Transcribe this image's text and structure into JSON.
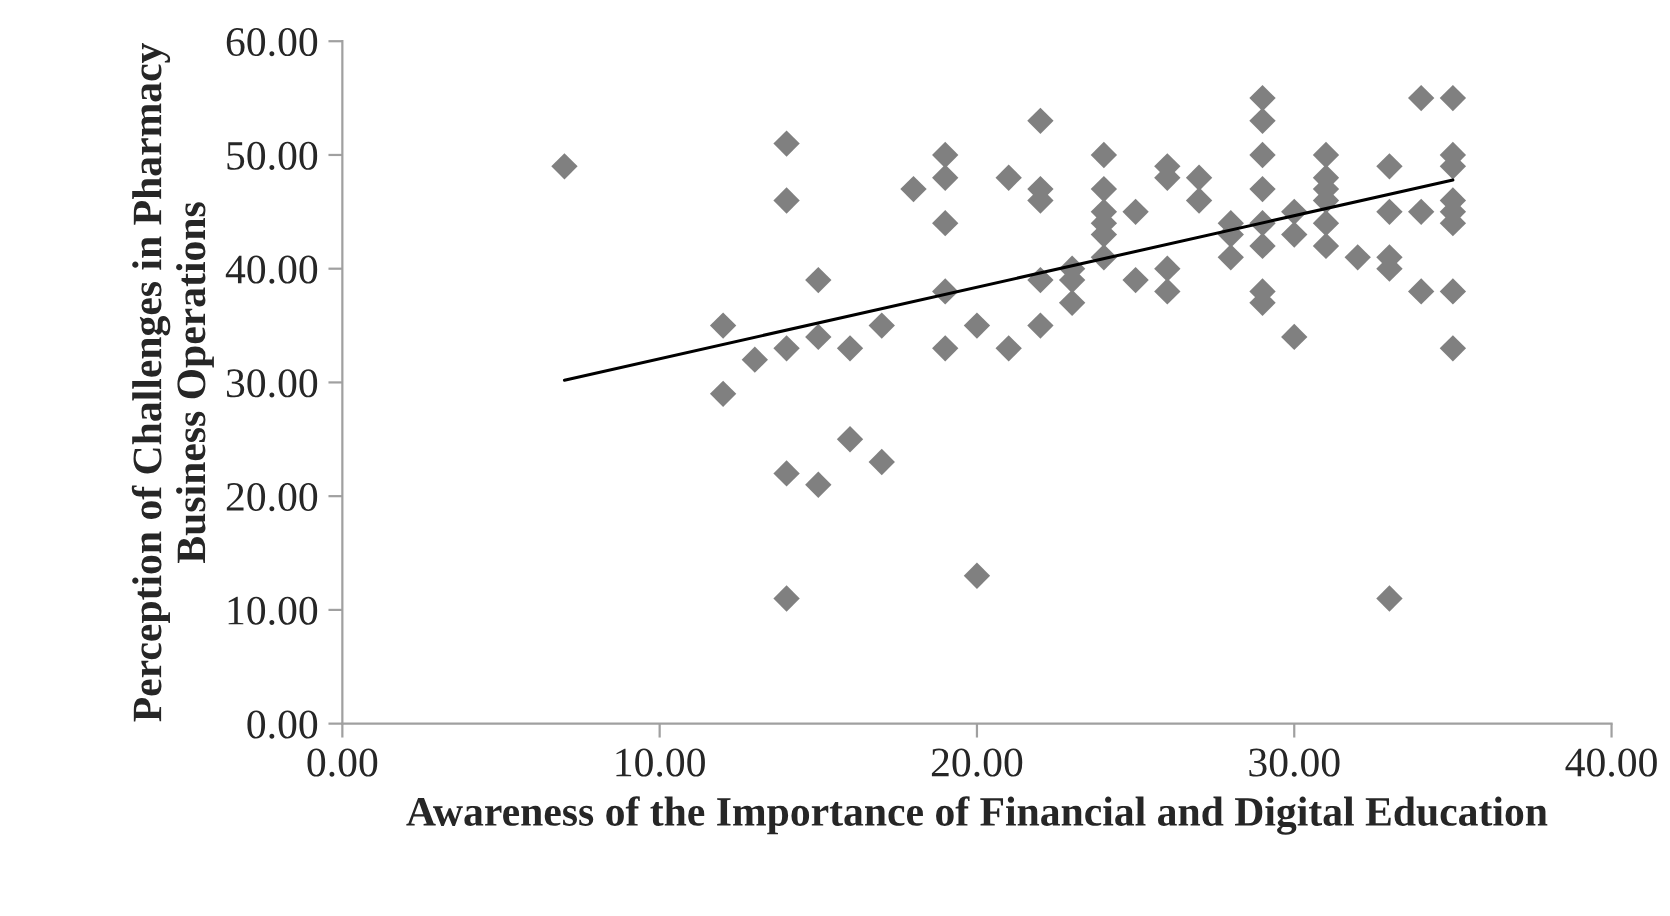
{
  "chart_data": {
    "type": "scatter",
    "xlabel": "Awareness of the Importance of Financial and Digital Education",
    "ylabel": "Perception of Challenges in Pharmacy Business Operations",
    "marker": "diamond",
    "grid": false,
    "legend": false,
    "xlim": [
      0,
      40
    ],
    "ylim": [
      0,
      60
    ],
    "xticks": [
      {
        "value": 0,
        "label": "0.00"
      },
      {
        "value": 10,
        "label": "10.00"
      },
      {
        "value": 20,
        "label": "20.00"
      },
      {
        "value": 30,
        "label": "30.00"
      },
      {
        "value": 40,
        "label": "40.00"
      }
    ],
    "yticks": [
      {
        "value": 0,
        "label": "0.00"
      },
      {
        "value": 10,
        "label": "10.00"
      },
      {
        "value": 20,
        "label": "20.00"
      },
      {
        "value": 30,
        "label": "30.00"
      },
      {
        "value": 40,
        "label": "40.00"
      },
      {
        "value": 50,
        "label": "50.00"
      },
      {
        "value": 60,
        "label": "60.00"
      }
    ],
    "series": [
      {
        "color": "#808080",
        "x": [
          7,
          12,
          12,
          13,
          14,
          14,
          14,
          14,
          14,
          15,
          15,
          15,
          16,
          16,
          17,
          17,
          18,
          19,
          19,
          19,
          19,
          19,
          20,
          20,
          21,
          21,
          22,
          22,
          22,
          22,
          22,
          23,
          23,
          23,
          24,
          24,
          24,
          24,
          24,
          24,
          25,
          25,
          26,
          26,
          26,
          26,
          27,
          27,
          28,
          28,
          28,
          29,
          29,
          29,
          29,
          29,
          29,
          29,
          29,
          30,
          30,
          30,
          31,
          31,
          31,
          31,
          31,
          31,
          32,
          33,
          33,
          33,
          33,
          33,
          34,
          34,
          34,
          35,
          35,
          35,
          35,
          35,
          35,
          35,
          35
        ],
        "values": [
          49,
          35,
          29,
          32,
          51,
          46,
          33,
          22,
          11,
          39,
          34,
          21,
          33,
          25,
          35,
          23,
          47,
          50,
          48,
          44,
          38,
          33,
          35,
          13,
          48,
          33,
          53,
          47,
          46,
          39,
          35,
          40,
          39,
          37,
          50,
          47,
          45,
          44,
          43,
          41,
          45,
          39,
          49,
          48,
          40,
          38,
          48,
          46,
          44,
          43,
          41,
          55,
          53,
          50,
          47,
          44,
          42,
          38,
          37,
          45,
          43,
          34,
          50,
          48,
          47,
          46,
          44,
          42,
          41,
          49,
          45,
          41,
          40,
          11,
          55,
          45,
          38,
          55,
          50,
          49,
          46,
          45,
          44,
          38,
          33
        ]
      },
      {
        "type": "line",
        "color": "#000000",
        "x": [
          7,
          35
        ],
        "values": [
          30.2,
          47.8
        ],
        "marker": "none",
        "line_style": "solid"
      }
    ]
  }
}
